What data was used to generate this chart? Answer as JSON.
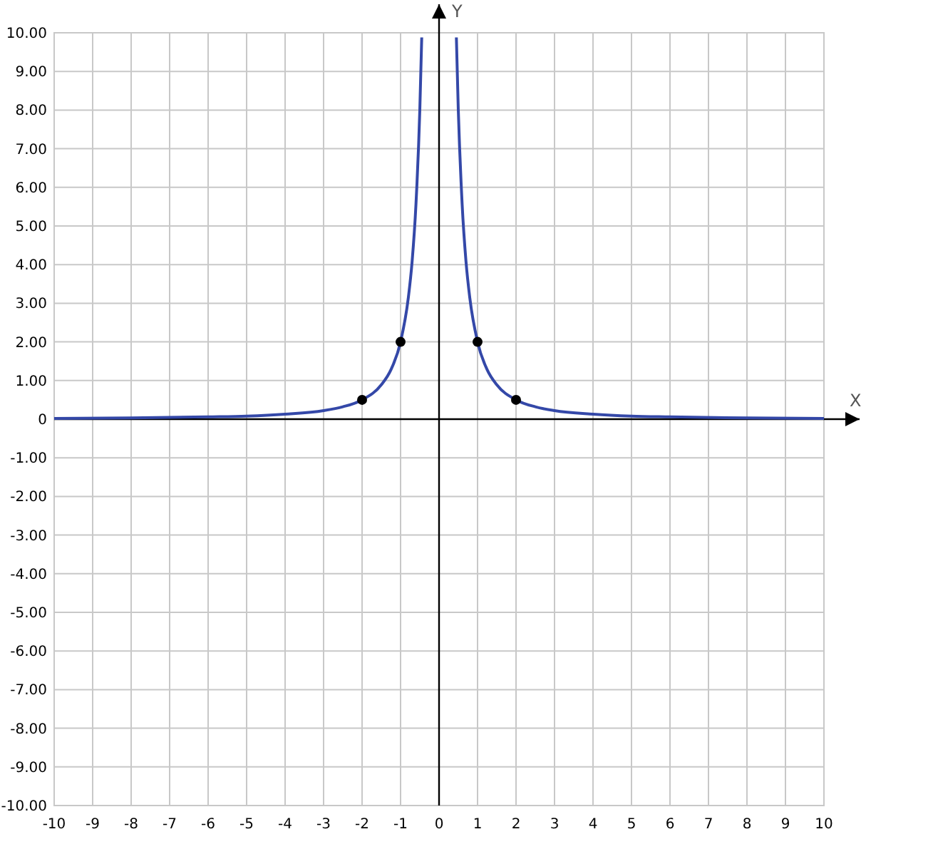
{
  "chart_data": {
    "type": "line",
    "xlabel": "X",
    "ylabel": "Y",
    "xlim": [
      -10,
      10
    ],
    "ylim": [
      -10,
      10
    ],
    "xticks": [
      -10,
      -9,
      -8,
      -7,
      -6,
      -5,
      -4,
      -3,
      -2,
      -1,
      0,
      1,
      2,
      3,
      4,
      5,
      6,
      7,
      8,
      9,
      10
    ],
    "yticks": [
      {
        "value": -10,
        "label": "-10.00"
      },
      {
        "value": -9,
        "label": "-9.00"
      },
      {
        "value": -8,
        "label": "-8.00"
      },
      {
        "value": -7,
        "label": "-7.00"
      },
      {
        "value": -6,
        "label": "-6.00"
      },
      {
        "value": -5,
        "label": "-5.00"
      },
      {
        "value": -4,
        "label": "-4.00"
      },
      {
        "value": -3,
        "label": "-3.00"
      },
      {
        "value": -2,
        "label": "-2.00"
      },
      {
        "value": -1,
        "label": "-1.00"
      },
      0,
      {
        "value": 1,
        "label": "1.00"
      },
      {
        "value": 2,
        "label": "2.00"
      },
      {
        "value": 3,
        "label": "3.00"
      },
      {
        "value": 4,
        "label": "4.00"
      },
      {
        "value": 5,
        "label": "5.00"
      },
      {
        "value": 6,
        "label": "6.00"
      },
      {
        "value": 7,
        "label": "7.00"
      },
      {
        "value": 8,
        "label": "8.00"
      },
      {
        "value": 9,
        "label": "9.00"
      },
      {
        "value": 10,
        "label": "10.00"
      }
    ],
    "grid": true,
    "series": [
      {
        "type": "line",
        "color": "#3448a8",
        "x": [
          -10,
          -8,
          -6,
          -5,
          -4,
          -3,
          -2.5,
          -2,
          -1.5,
          -1.25,
          -1,
          -0.8,
          -0.7,
          -0.6,
          -0.5,
          -0.45
        ],
        "values": [
          0.02,
          0.03,
          0.06,
          0.08,
          0.13,
          0.22,
          0.32,
          0.5,
          0.89,
          1.28,
          2,
          3.13,
          4.08,
          5.56,
          8,
          9.88
        ]
      },
      {
        "type": "line",
        "color": "#3448a8",
        "x": [
          0.45,
          0.5,
          0.6,
          0.7,
          0.8,
          1,
          1.25,
          1.5,
          2,
          2.5,
          3,
          4,
          5,
          6,
          8,
          10
        ],
        "values": [
          9.88,
          8,
          5.56,
          4.08,
          3.13,
          2,
          1.28,
          0.89,
          0.5,
          0.32,
          0.22,
          0.13,
          0.08,
          0.06,
          0.03,
          0.02
        ]
      },
      {
        "type": "scatter",
        "color": "#000000",
        "marker": "circle",
        "x": [
          -2,
          -1,
          1,
          2
        ],
        "values": [
          0.5,
          2,
          2,
          0.5
        ]
      }
    ]
  }
}
